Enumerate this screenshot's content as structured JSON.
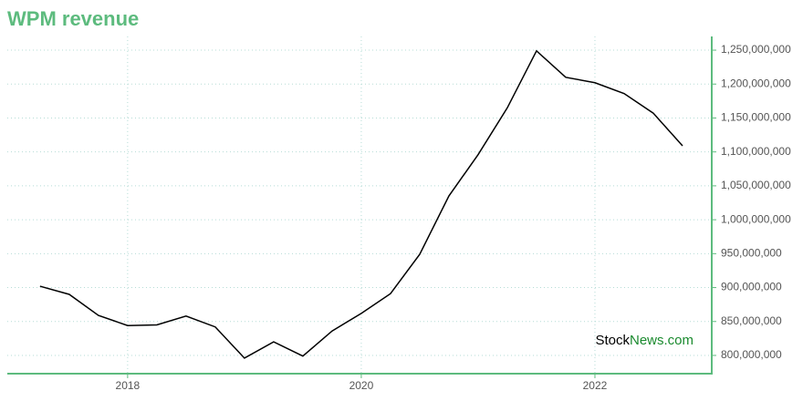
{
  "chart_data": {
    "type": "line",
    "title": "WPM revenue",
    "watermark": [
      "Stock",
      "News.com"
    ],
    "x": [
      2017.25,
      2017.5,
      2017.75,
      2018,
      2018.25,
      2018.5,
      2018.75,
      2019,
      2019.25,
      2019.5,
      2019.75,
      2020,
      2020.25,
      2020.5,
      2020.75,
      2021,
      2021.25,
      2021.5,
      2021.75,
      2022,
      2022.25,
      2022.5,
      2022.75
    ],
    "series": [
      {
        "color": "#000000",
        "values": [
          902000000,
          890000000,
          859000000,
          844000000,
          845000000,
          858000000,
          842000000,
          796000000,
          820000000,
          799000000,
          836000000,
          862000000,
          891000000,
          949000000,
          1035000000,
          1096000000,
          1165000000,
          1249000000,
          1210000000,
          1202000000,
          1186000000,
          1157000000,
          1109000000
        ]
      }
    ],
    "xlim": [
      2016.97,
      2023
    ],
    "xticks": [
      2018,
      2020,
      2022
    ],
    "ylim": [
      773100000,
      1270200000
    ],
    "yticks": [
      {
        "value": 800000000,
        "label": "800,000,000"
      },
      {
        "value": 850000000,
        "label": "850,000,000"
      },
      {
        "value": 900000000,
        "label": "900,000,000"
      },
      {
        "value": 950000000,
        "label": "950,000,000"
      },
      {
        "value": 1000000000,
        "label": "1,000,000,000"
      },
      {
        "value": 1050000000,
        "label": "1,050,000,000"
      },
      {
        "value": 1100000000,
        "label": "1,100,000,000"
      },
      {
        "value": 1150000000,
        "label": "1,150,000,000"
      },
      {
        "value": 1200000000,
        "label": "1,200,000,000"
      },
      {
        "value": 1250000000,
        "label": "1,250,000,000"
      }
    ],
    "grid": true,
    "axis_color": "#5dbb7e"
  }
}
